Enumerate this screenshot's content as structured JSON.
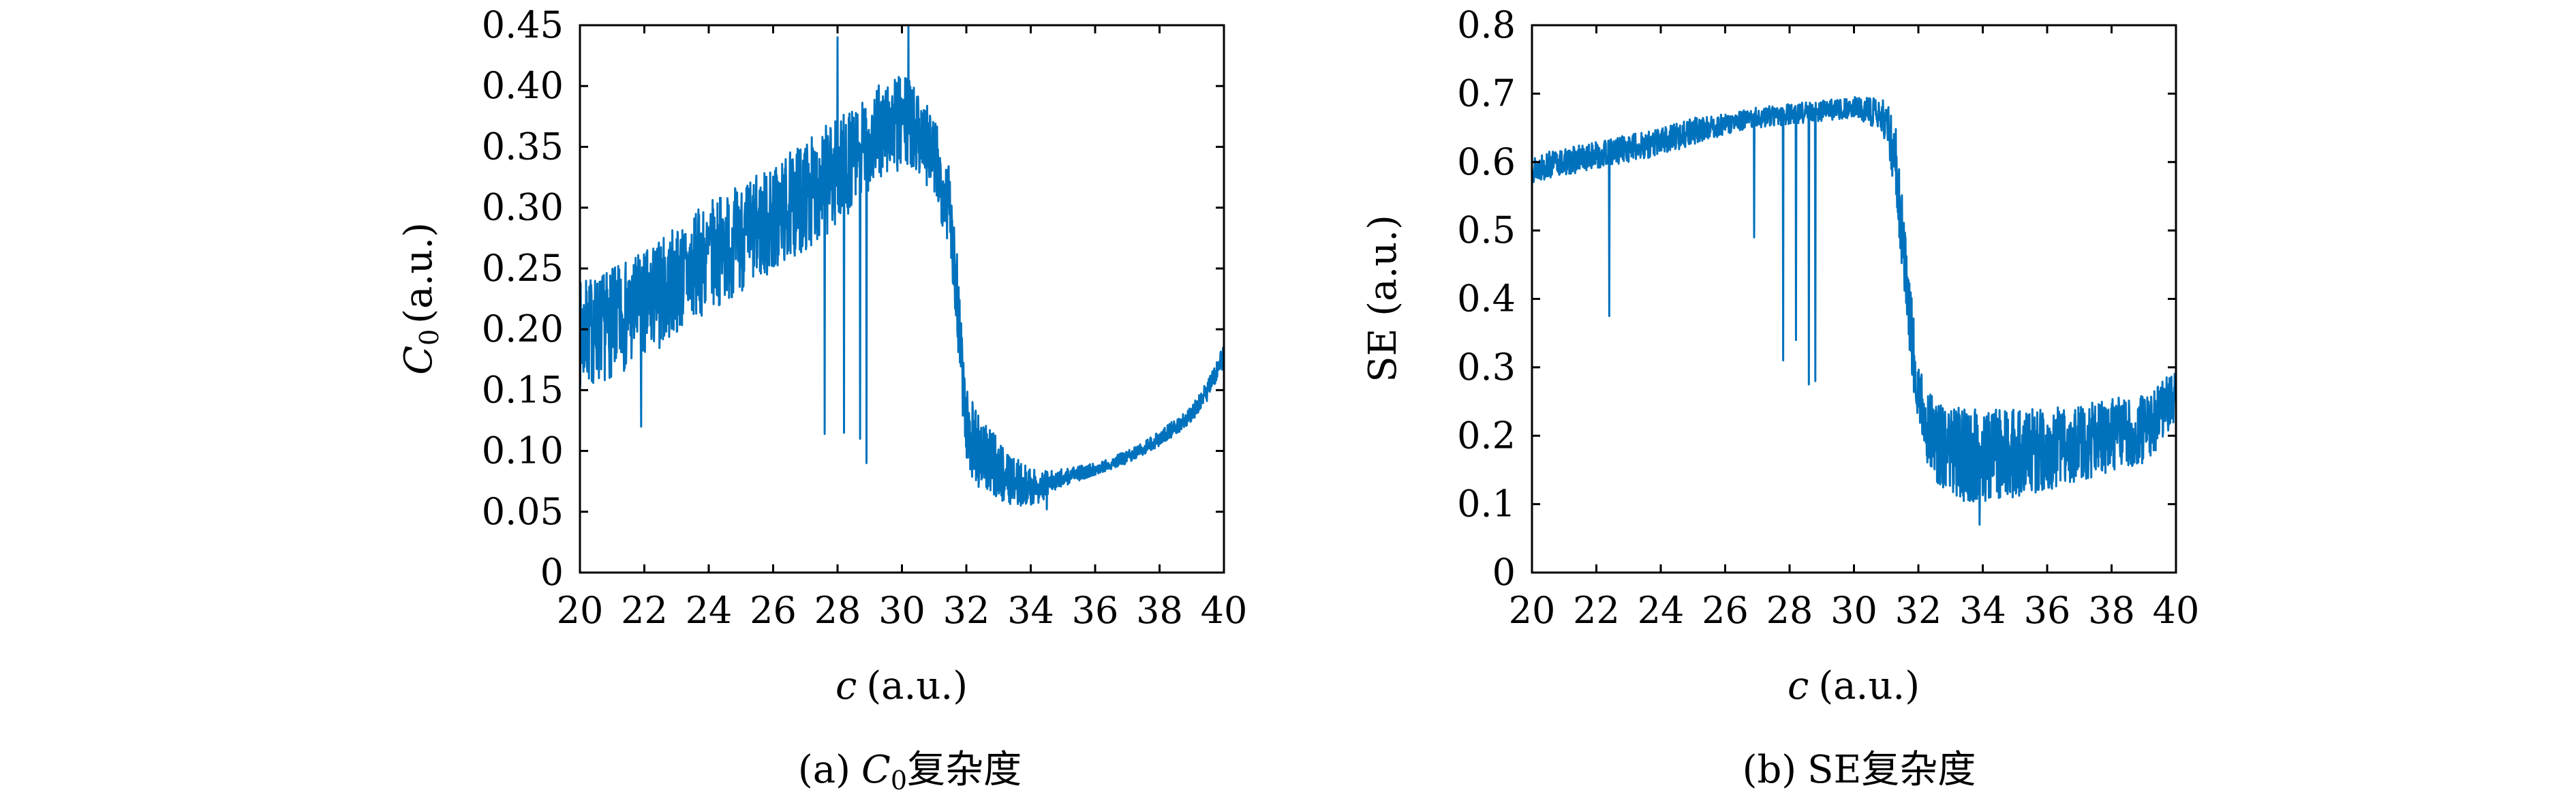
{
  "colors": {
    "series": "#0072BD",
    "axis": "#000000",
    "background": "#ffffff"
  },
  "chart_data": [
    {
      "type": "line",
      "caption": "(a) C0复杂度",
      "caption_prefix": "(a)",
      "caption_symbol": "C",
      "caption_subscript": "0",
      "caption_suffix": "复杂度",
      "xlabel": "c (a.u.)",
      "xlabel_symbol": "c",
      "xlabel_unit": "(a.u.)",
      "ylabel": "C0 (a.u.)",
      "ylabel_symbol": "C",
      "ylabel_subscript": "0",
      "ylabel_unit": "(a.u.)",
      "xlim": [
        20,
        40
      ],
      "ylim": [
        0,
        0.45
      ],
      "xticks": [
        "20",
        "22",
        "24",
        "26",
        "28",
        "30",
        "32",
        "34",
        "36",
        "38",
        "40"
      ],
      "yticks": [
        "0",
        "0.05",
        "0.10",
        "0.15",
        "0.20",
        "0.25",
        "0.30",
        "0.35",
        "0.40",
        "0.45"
      ],
      "grid": false,
      "noise_note": "dense high-frequency fluctuating signal",
      "envelope": {
        "x": [
          20,
          21,
          22,
          23,
          24,
          25,
          26,
          27,
          27.5,
          28,
          28.5,
          29,
          29.5,
          30,
          30.5,
          31,
          31.5,
          31.8,
          32,
          32.5,
          33,
          33.5,
          34,
          34.5,
          35,
          36,
          37,
          38,
          39,
          39.5,
          40
        ],
        "base": [
          0.195,
          0.205,
          0.22,
          0.24,
          0.26,
          0.275,
          0.29,
          0.31,
          0.32,
          0.33,
          0.34,
          0.355,
          0.365,
          0.37,
          0.365,
          0.34,
          0.3,
          0.2,
          0.12,
          0.095,
          0.085,
          0.075,
          0.07,
          0.072,
          0.078,
          0.085,
          0.095,
          0.11,
          0.13,
          0.15,
          0.18
        ],
        "amp": [
          0.045,
          0.045,
          0.045,
          0.045,
          0.045,
          0.045,
          0.045,
          0.045,
          0.045,
          0.045,
          0.04,
          0.04,
          0.04,
          0.04,
          0.035,
          0.035,
          0.035,
          0.04,
          0.035,
          0.03,
          0.025,
          0.02,
          0.015,
          0.012,
          0.007,
          0.005,
          0.005,
          0.006,
          0.007,
          0.008,
          0.01
        ]
      },
      "spikes": [
        {
          "x": 21.9,
          "y": 0.12
        },
        {
          "x": 27.6,
          "y": 0.114
        },
        {
          "x": 28.2,
          "y": 0.115
        },
        {
          "x": 28.7,
          "y": 0.11
        },
        {
          "x": 28.9,
          "y": 0.09
        },
        {
          "x": 30.2,
          "y": 0.45
        },
        {
          "x": 28.0,
          "y": 0.44
        },
        {
          "x": 34.5,
          "y": 0.052
        }
      ]
    },
    {
      "type": "line",
      "caption": "(b) SE复杂度",
      "caption_prefix": "(b)",
      "caption_suffix": "SE复杂度",
      "xlabel": "c (a.u.)",
      "xlabel_symbol": "c",
      "xlabel_unit": "(a.u.)",
      "ylabel": "SE (a.u.)",
      "xlim": [
        20,
        40
      ],
      "ylim": [
        0,
        0.8
      ],
      "xticks": [
        "20",
        "22",
        "24",
        "26",
        "28",
        "30",
        "32",
        "34",
        "36",
        "38",
        "40"
      ],
      "yticks": [
        "0",
        "0.1",
        "0.2",
        "0.3",
        "0.4",
        "0.5",
        "0.6",
        "0.7",
        "0.8"
      ],
      "grid": false,
      "envelope": {
        "x": [
          20,
          21,
          22,
          23,
          24,
          25,
          26,
          27,
          28,
          29,
          30,
          30.5,
          31,
          31.3,
          31.6,
          32,
          32.5,
          33,
          33.5,
          34,
          35,
          36,
          37,
          38,
          39,
          39.5,
          40
        ],
        "base": [
          0.59,
          0.6,
          0.61,
          0.62,
          0.63,
          0.645,
          0.655,
          0.665,
          0.67,
          0.675,
          0.68,
          0.675,
          0.66,
          0.6,
          0.45,
          0.25,
          0.19,
          0.18,
          0.17,
          0.17,
          0.175,
          0.18,
          0.19,
          0.2,
          0.21,
          0.23,
          0.26
        ],
        "amp": [
          0.02,
          0.02,
          0.02,
          0.02,
          0.02,
          0.02,
          0.015,
          0.015,
          0.015,
          0.015,
          0.015,
          0.02,
          0.03,
          0.05,
          0.07,
          0.05,
          0.06,
          0.065,
          0.07,
          0.07,
          0.065,
          0.06,
          0.055,
          0.055,
          0.05,
          0.045,
          0.04
        ]
      },
      "spikes": [
        {
          "x": 22.4,
          "y": 0.375
        },
        {
          "x": 26.9,
          "y": 0.49
        },
        {
          "x": 27.8,
          "y": 0.31
        },
        {
          "x": 28.2,
          "y": 0.34
        },
        {
          "x": 28.6,
          "y": 0.275
        },
        {
          "x": 28.8,
          "y": 0.28
        },
        {
          "x": 33.9,
          "y": 0.07
        }
      ]
    }
  ]
}
